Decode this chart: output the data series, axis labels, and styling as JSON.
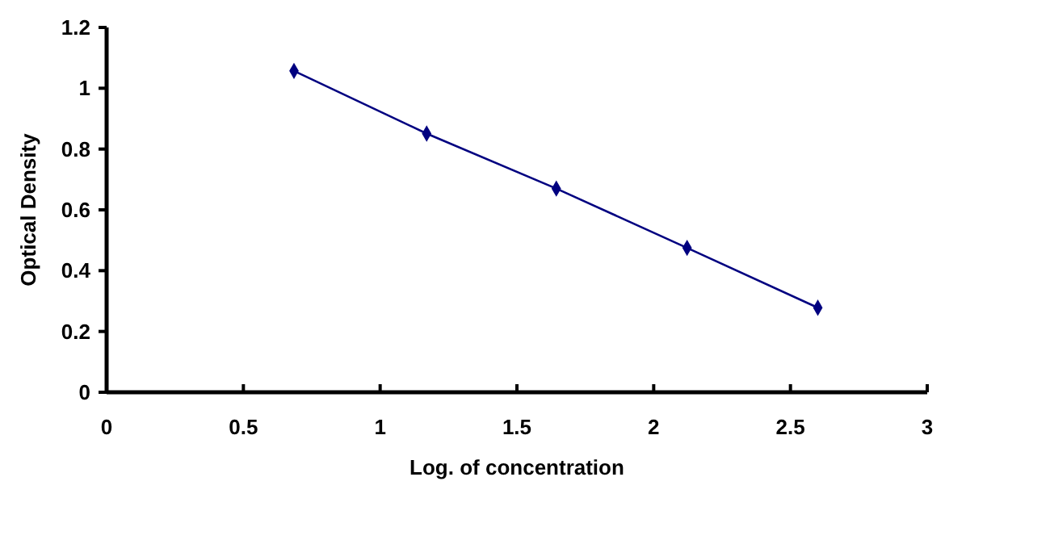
{
  "chart_data": {
    "type": "line",
    "xlabel": "Log. of concentration",
    "ylabel": "Optical Density",
    "x": [
      0.685,
      1.17,
      1.644,
      2.122,
      2.6
    ],
    "series": [
      {
        "color": "#000080",
        "values": [
          1.057,
          0.851,
          0.67,
          0.475,
          0.278
        ]
      }
    ],
    "xlim": [
      0,
      3
    ],
    "xticks": [
      0,
      0.5,
      1,
      1.5,
      2,
      2.5,
      3
    ],
    "ylim": [
      0,
      1.2
    ],
    "yticks": [
      0,
      0.2,
      0.4,
      0.6,
      0.8,
      1,
      1.2
    ],
    "marker": "diamond",
    "grid": false
  }
}
